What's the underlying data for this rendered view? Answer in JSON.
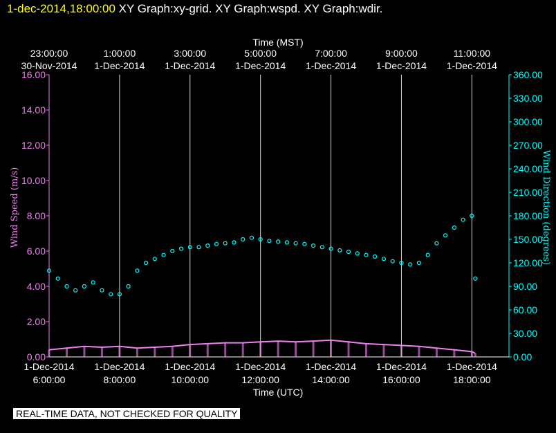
{
  "header": {
    "timestamp": "1-dec-2014,18:00:00",
    "graphs": [
      "XY Graph:xy-grid.",
      "XY Graph:wspd.",
      "XY Graph:wdir."
    ]
  },
  "notice": "REAL-TIME DATA, NOT CHECKED FOR QUALITY",
  "colors": {
    "background": "#000000",
    "wind_speed": "#ee82ee",
    "wind_direction": "#00ffff",
    "grid": "#ffffff",
    "timestamp": "#ffff00"
  },
  "chart_data": {
    "type": "scatter",
    "top_axis": {
      "label": "Time (MST)",
      "ticks": [
        {
          "time": "23:00:00",
          "date": "30-Nov-2014"
        },
        {
          "time": "1:00:00",
          "date": "1-Dec-2014"
        },
        {
          "time": "3:00:00",
          "date": "1-Dec-2014"
        },
        {
          "time": "5:00:00",
          "date": "1-Dec-2014"
        },
        {
          "time": "7:00:00",
          "date": "1-Dec-2014"
        },
        {
          "time": "9:00:00",
          "date": "1-Dec-2014"
        },
        {
          "time": "11:00:00",
          "date": "1-Dec-2014"
        }
      ]
    },
    "bottom_axis": {
      "label": "Time (UTC)",
      "range_hours": [
        6,
        18.7
      ],
      "ticks": [
        {
          "hour": 6,
          "date": "1-Dec-2014",
          "time": "6:00:00"
        },
        {
          "hour": 8,
          "date": "1-Dec-2014",
          "time": "8:00:00"
        },
        {
          "hour": 10,
          "date": "1-Dec-2014",
          "time": "10:00:00"
        },
        {
          "hour": 12,
          "date": "1-Dec-2014",
          "time": "12:00:00"
        },
        {
          "hour": 14,
          "date": "1-Dec-2014",
          "time": "14:00:00"
        },
        {
          "hour": 16,
          "date": "1-Dec-2014",
          "time": "16:00:00"
        },
        {
          "hour": 18,
          "date": "1-Dec-2014",
          "time": "18:00:00"
        }
      ]
    },
    "left_axis": {
      "label": "Wind Speed (m/s)",
      "ylim": [
        0,
        16
      ],
      "ticks": [
        "0.00",
        "2.00",
        "4.00",
        "6.00",
        "8.00",
        "10.00",
        "12.00",
        "14.00",
        "16.00"
      ]
    },
    "right_axis": {
      "label": "Wind Direction (degrees)",
      "ylim": [
        0,
        360
      ],
      "ticks": [
        "0.00",
        "30.00",
        "60.00",
        "90.00",
        "120.00",
        "150.00",
        "180.00",
        "210.00",
        "240.00",
        "270.00",
        "300.00",
        "330.00",
        "360.00"
      ]
    },
    "grid": "vertical",
    "series": [
      {
        "axis": "left",
        "style": "line",
        "points": [
          [
            6.0,
            0.4
          ],
          [
            6.5,
            0.5
          ],
          [
            7.0,
            0.6
          ],
          [
            7.5,
            0.55
          ],
          [
            8.0,
            0.6
          ],
          [
            8.5,
            0.5
          ],
          [
            9.0,
            0.55
          ],
          [
            9.5,
            0.6
          ],
          [
            10.0,
            0.7
          ],
          [
            10.5,
            0.75
          ],
          [
            11.0,
            0.8
          ],
          [
            11.5,
            0.8
          ],
          [
            12.0,
            0.85
          ],
          [
            12.5,
            0.9
          ],
          [
            13.0,
            0.85
          ],
          [
            13.5,
            0.9
          ],
          [
            14.0,
            0.95
          ],
          [
            14.5,
            0.85
          ],
          [
            15.0,
            0.75
          ],
          [
            15.5,
            0.7
          ],
          [
            16.0,
            0.65
          ],
          [
            16.5,
            0.6
          ],
          [
            17.0,
            0.5
          ],
          [
            17.5,
            0.4
          ],
          [
            18.0,
            0.3
          ],
          [
            18.1,
            0.2
          ]
        ]
      },
      {
        "axis": "right",
        "style": "markers",
        "points": [
          [
            6.0,
            110
          ],
          [
            6.25,
            100
          ],
          [
            6.5,
            90
          ],
          [
            6.75,
            85
          ],
          [
            7.0,
            90
          ],
          [
            7.25,
            95
          ],
          [
            7.5,
            85
          ],
          [
            7.75,
            80
          ],
          [
            8.0,
            80
          ],
          [
            8.25,
            90
          ],
          [
            8.5,
            110
          ],
          [
            8.75,
            120
          ],
          [
            9.0,
            125
          ],
          [
            9.25,
            130
          ],
          [
            9.5,
            135
          ],
          [
            9.75,
            138
          ],
          [
            10.0,
            140
          ],
          [
            10.25,
            140
          ],
          [
            10.5,
            142
          ],
          [
            10.75,
            144
          ],
          [
            11.0,
            145
          ],
          [
            11.25,
            146
          ],
          [
            11.5,
            150
          ],
          [
            11.75,
            152
          ],
          [
            12.0,
            150
          ],
          [
            12.25,
            148
          ],
          [
            12.5,
            147
          ],
          [
            12.75,
            146
          ],
          [
            13.0,
            145
          ],
          [
            13.25,
            144
          ],
          [
            13.5,
            142
          ],
          [
            13.75,
            140
          ],
          [
            14.0,
            138
          ],
          [
            14.25,
            136
          ],
          [
            14.5,
            134
          ],
          [
            14.75,
            132
          ],
          [
            15.0,
            130
          ],
          [
            15.25,
            128
          ],
          [
            15.5,
            125
          ],
          [
            15.75,
            122
          ],
          [
            16.0,
            120
          ],
          [
            16.25,
            118
          ],
          [
            16.5,
            120
          ],
          [
            16.75,
            130
          ],
          [
            17.0,
            145
          ],
          [
            17.25,
            155
          ],
          [
            17.5,
            165
          ],
          [
            17.75,
            175
          ],
          [
            18.0,
            180
          ],
          [
            18.1,
            100
          ]
        ]
      }
    ]
  }
}
